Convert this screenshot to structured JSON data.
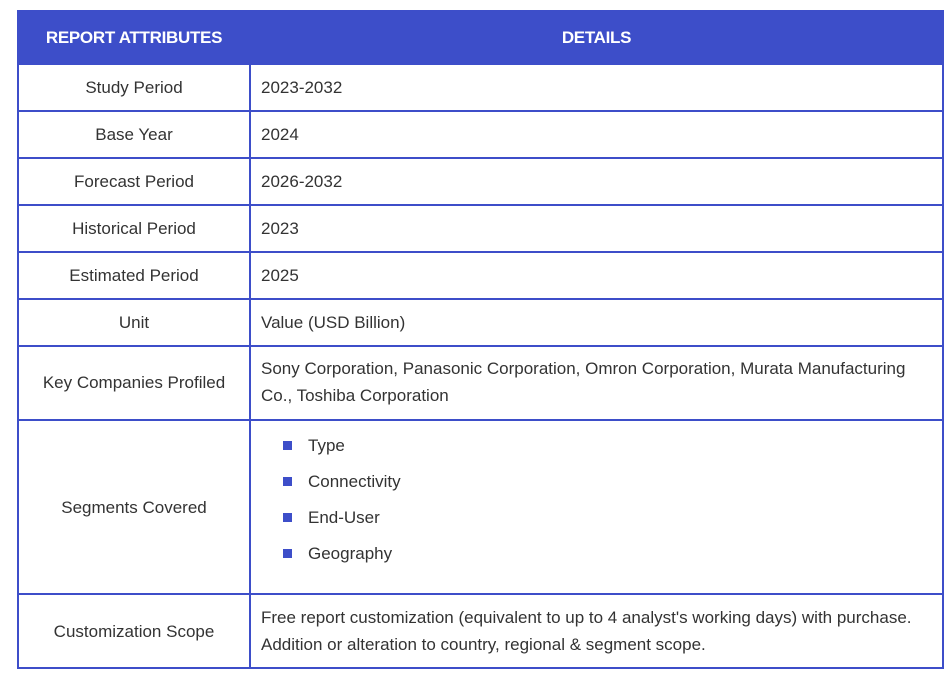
{
  "header": {
    "col1": "REPORT ATTRIBUTES",
    "col2": "DETAILS"
  },
  "rows": [
    {
      "attribute": "Study Period",
      "detail": "2023-2032"
    },
    {
      "attribute": "Base Year",
      "detail": "2024"
    },
    {
      "attribute": "Forecast Period",
      "detail": "2026-2032"
    },
    {
      "attribute": "Historical Period",
      "detail": "2023"
    },
    {
      "attribute": "Estimated Period",
      "detail": "2025"
    },
    {
      "attribute": "Unit",
      "detail": "Value (USD Billion)"
    },
    {
      "attribute": "Key Companies Profiled",
      "detail": "Sony Corporation, Panasonic Corporation, Omron Corporation, Murata Manufacturing Co., Toshiba Corporation"
    }
  ],
  "segments": {
    "attribute": "Segments Covered",
    "items": [
      "Type",
      "Connectivity",
      "End-User",
      "Geography"
    ]
  },
  "customization": {
    "attribute": "Customization Scope",
    "detail": "Free report customization (equivalent to up to 4 analyst's working days) with purchase. Addition or alteration to country, regional & segment scope."
  },
  "colors": {
    "accent": "#3d4ec9",
    "text": "#333333",
    "header_text": "#ffffff"
  }
}
